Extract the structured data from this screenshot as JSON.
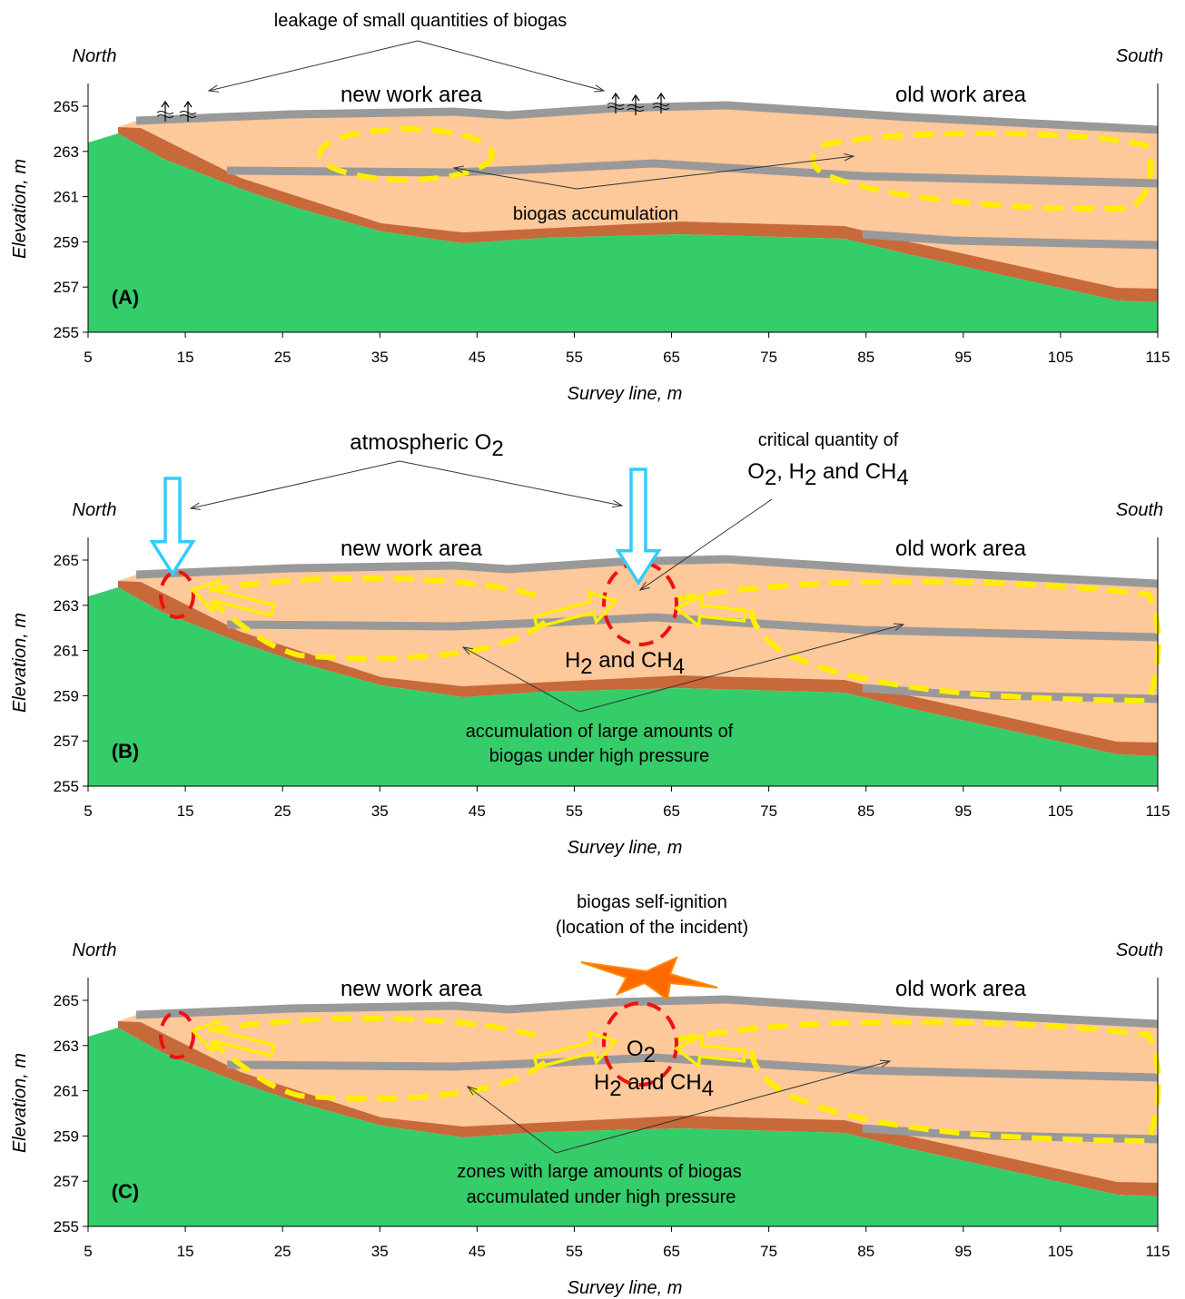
{
  "panels": [
    {
      "label": "(A)",
      "north": "North",
      "south": "South",
      "y_axis_title": "Elevation, m",
      "x_axis_title": "Survey line, m",
      "yticks": [
        255,
        257,
        259,
        261,
        263,
        265
      ],
      "xticks": [
        5,
        15,
        25,
        35,
        45,
        55,
        65,
        75,
        85,
        95,
        105,
        115
      ],
      "new_area": "new work area",
      "old_area": "old work area",
      "notes": [
        [
          "leakage of small quantities of biogas"
        ],
        [
          "biogas accumulation"
        ]
      ]
    },
    {
      "label": "(B)",
      "north": "North",
      "south": "South",
      "y_axis_title": "Elevation, m",
      "x_axis_title": "Survey line, m",
      "yticks": [
        255,
        257,
        259,
        261,
        263,
        265
      ],
      "xticks": [
        5,
        15,
        25,
        35,
        45,
        55,
        65,
        75,
        85,
        95,
        105,
        115
      ],
      "new_area": "new work area",
      "old_area": "old work area",
      "notes": [
        [
          "atmospheric O",
          "2"
        ],
        [
          "critical quantity of"
        ],
        [
          "O",
          "2",
          ", H",
          "2",
          " and  CH",
          "4"
        ],
        [
          "H",
          "2",
          " and  CH",
          "4"
        ],
        [
          "accumulation of large amounts of"
        ],
        [
          "biogas under high pressure"
        ]
      ]
    },
    {
      "label": "(C)",
      "north": "North",
      "south": "South",
      "y_axis_title": "Elevation, m",
      "x_axis_title": "Survey line, m",
      "yticks": [
        255,
        257,
        259,
        261,
        263,
        265
      ],
      "xticks": [
        5,
        15,
        25,
        35,
        45,
        55,
        65,
        75,
        85,
        95,
        105,
        115
      ],
      "new_area": "new work area",
      "old_area": "old work area",
      "notes": [
        [
          "biogas self-ignition"
        ],
        [
          "(location of the incident)"
        ],
        [
          "O",
          "2"
        ],
        [
          "H",
          "2",
          " and  CH",
          "4"
        ],
        [
          "zones with large amounts of biogas"
        ],
        [
          "accumulated under high pressure"
        ]
      ]
    }
  ]
}
